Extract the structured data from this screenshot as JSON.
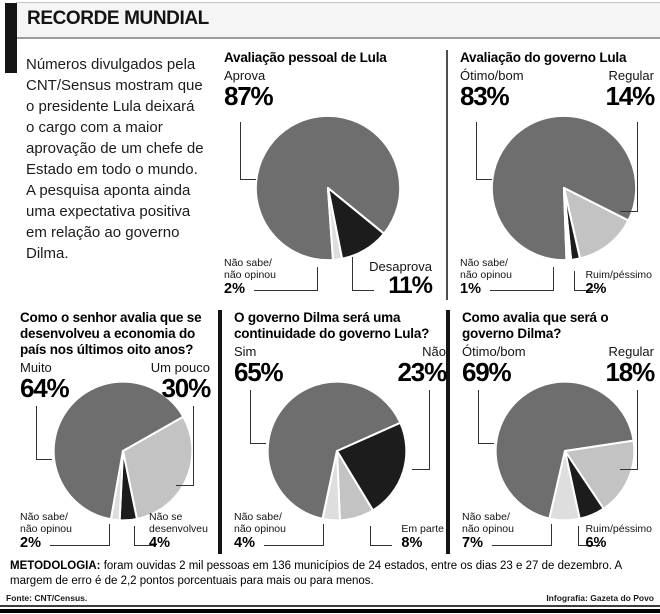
{
  "header": {
    "title": "RECORDE MUNDIAL"
  },
  "intro": "Números divulgados pela CNT/Sensus mostram que o presidente Lula deixará o cargo com a maior aprovação de um chefe de Estado em todo o mundo. A pesquisa aponta ainda uma expectativa positiva em relação ao governo Dilma.",
  "palette": {
    "dark": "#6e6e6e",
    "black": "#1c1c1c",
    "light": "#c3c3c3",
    "pale": "#dedede",
    "white": "#ffffff"
  },
  "chart_data": [
    {
      "type": "pie",
      "title": "Avaliação pessoal de Lula",
      "start_angle": 176,
      "slices": [
        {
          "label": "Aprova",
          "value": 87,
          "pct": "87%",
          "color": "dark"
        },
        {
          "label": "Desaprova",
          "value": 11,
          "pct": "11%",
          "color": "black"
        },
        {
          "label": "Não sabe/\nnão opinou",
          "value": 2,
          "pct": "2%",
          "color": "pale"
        }
      ]
    },
    {
      "type": "pie",
      "title": "Avaliação do governo Lula",
      "start_angle": 178,
      "slices": [
        {
          "label": "Ótimo/bom",
          "value": 83,
          "pct": "83%",
          "color": "dark"
        },
        {
          "label": "Regular",
          "value": 14,
          "pct": "14%",
          "color": "light"
        },
        {
          "label": "Ruim/péssimo",
          "value": 2,
          "pct": "2%",
          "color": "black"
        },
        {
          "label": "Não sabe/\nnão opinou",
          "value": 1,
          "pct": "1%",
          "color": "white"
        }
      ]
    },
    {
      "type": "pie",
      "title": "Como o senhor avalia que se desenvolveu a economia do país nos últimos oito anos?",
      "start_angle": 190,
      "slices": [
        {
          "label": "Muito",
          "value": 64,
          "pct": "64%",
          "color": "dark"
        },
        {
          "label": "Um pouco",
          "value": 30,
          "pct": "30%",
          "color": "light"
        },
        {
          "label": "Não se\ndesenvolveu",
          "value": 4,
          "pct": "4%",
          "color": "black"
        },
        {
          "label": "Não sabe/\nnão opinou",
          "value": 2,
          "pct": "2%",
          "color": "pale"
        }
      ]
    },
    {
      "type": "pie",
      "title": "O governo Dilma será uma continuidade do governo Lula?",
      "start_angle": 192,
      "slices": [
        {
          "label": "Sim",
          "value": 65,
          "pct": "65%",
          "color": "dark"
        },
        {
          "label": "Não",
          "value": 23,
          "pct": "23%",
          "color": "black"
        },
        {
          "label": "Em parte",
          "value": 8,
          "pct": "8%",
          "color": "light"
        },
        {
          "label": "Não sabe/\nnão opinou",
          "value": 4,
          "pct": "4%",
          "color": "pale"
        }
      ]
    },
    {
      "type": "pie",
      "title": "Como avalia que será o governo Dilma?",
      "start_angle": 193,
      "slices": [
        {
          "label": "Ótimo/bom",
          "value": 69,
          "pct": "69%",
          "color": "dark"
        },
        {
          "label": "Regular",
          "value": 18,
          "pct": "18%",
          "color": "light"
        },
        {
          "label": "Ruim/péssimo",
          "value": 6,
          "pct": "6%",
          "color": "black"
        },
        {
          "label": "Não sabe/\nnão opinou",
          "value": 7,
          "pct": "7%",
          "color": "pale"
        }
      ]
    }
  ],
  "methodology": {
    "label": "METODOLOGIA:",
    "text": " foram ouvidas 2 mil pessoas em 136 municípios de 24 estados, entre os dias 23 e 27 de dezembro. A margem de erro é de 2,2 pontos porcentuais para mais ou para menos."
  },
  "footer": {
    "source": "Fonte: CNT/Census.",
    "credit": "Infografia: Gazeta do Povo"
  }
}
